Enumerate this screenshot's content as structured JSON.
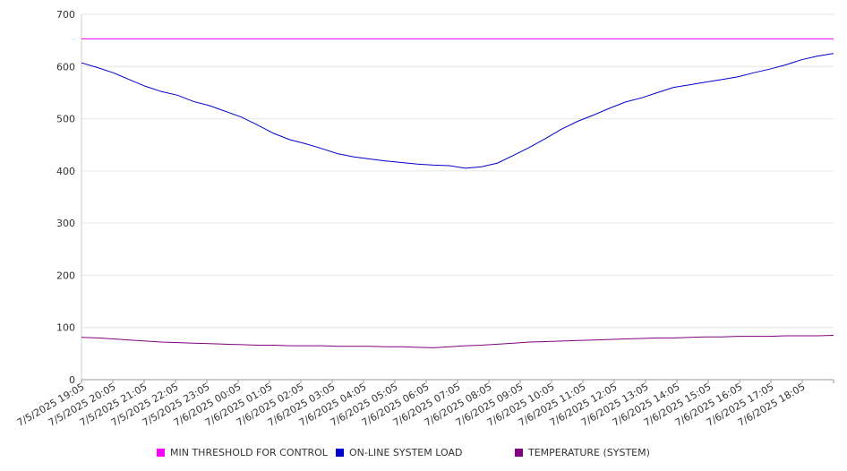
{
  "chart_data": {
    "type": "line",
    "title": "",
    "xlabel": "",
    "ylabel": "",
    "ylim": [
      0,
      700
    ],
    "yticks": [
      "0",
      "100",
      "200",
      "300",
      "400",
      "500",
      "600",
      "700"
    ],
    "grid": true,
    "legend_position": "bottom",
    "x_tick_labels": [
      "7/5/2025 19:05",
      "7/5/2025 20:05",
      "7/5/2025 21:05",
      "7/5/2025 22:05",
      "7/5/2025 23:05",
      "7/6/2025 00:05",
      "7/6/2025 01:05",
      "7/6/2025 02:05",
      "7/6/2025 03:05",
      "7/6/2025 04:05",
      "7/6/2025 05:05",
      "7/6/2025 06:05",
      "7/6/2025 07:05",
      "7/6/2025 08:05",
      "7/6/2025 09:05",
      "7/6/2025 10:05",
      "7/6/2025 11:05",
      "7/6/2025 12:05",
      "7/6/2025 13:05",
      "7/6/2025 14:05",
      "7/6/2025 15:05",
      "7/6/2025 16:05",
      "7/6/2025 17:05",
      "7/6/2025 18:05"
    ],
    "x": [
      "7/5/2025 19:05",
      "7/5/2025 19:35",
      "7/5/2025 20:05",
      "7/5/2025 20:35",
      "7/5/2025 21:05",
      "7/5/2025 21:35",
      "7/5/2025 22:05",
      "7/5/2025 22:35",
      "7/5/2025 23:05",
      "7/5/2025 23:35",
      "7/6/2025 00:05",
      "7/6/2025 00:35",
      "7/6/2025 01:05",
      "7/6/2025 01:35",
      "7/6/2025 02:05",
      "7/6/2025 02:35",
      "7/6/2025 03:05",
      "7/6/2025 03:35",
      "7/6/2025 04:05",
      "7/6/2025 04:35",
      "7/6/2025 05:05",
      "7/6/2025 05:35",
      "7/6/2025 06:05",
      "7/6/2025 06:35",
      "7/6/2025 07:05",
      "7/6/2025 07:35",
      "7/6/2025 08:05",
      "7/6/2025 08:35",
      "7/6/2025 09:05",
      "7/6/2025 09:35",
      "7/6/2025 10:05",
      "7/6/2025 10:35",
      "7/6/2025 11:05",
      "7/6/2025 11:35",
      "7/6/2025 12:05",
      "7/6/2025 12:35",
      "7/6/2025 13:05",
      "7/6/2025 13:35",
      "7/6/2025 14:05",
      "7/6/2025 14:35",
      "7/6/2025 15:05",
      "7/6/2025 15:35",
      "7/6/2025 16:05",
      "7/6/2025 16:35",
      "7/6/2025 17:05",
      "7/6/2025 17:35",
      "7/6/2025 18:05",
      "7/6/2025 18:35"
    ],
    "series": [
      {
        "name": "MIN THRESHOLD FOR CONTROL",
        "color": "#ff00ff",
        "values": [
          653,
          653,
          653,
          653,
          653,
          653,
          653,
          653,
          653,
          653,
          653,
          653,
          653,
          653,
          653,
          653,
          653,
          653,
          653,
          653,
          653,
          653,
          653,
          653,
          653,
          653,
          653,
          653,
          653,
          653,
          653,
          653,
          653,
          653,
          653,
          653,
          653,
          653,
          653,
          653,
          653,
          653,
          653,
          653,
          653,
          653,
          653,
          653
        ]
      },
      {
        "name": "ON-LINE SYSTEM LOAD",
        "color": "#0000cc",
        "values": [
          607,
          598,
          588,
          575,
          562,
          552,
          545,
          533,
          525,
          514,
          503,
          488,
          472,
          460,
          452,
          443,
          433,
          427,
          423,
          419,
          416,
          413,
          411,
          410,
          405,
          408,
          415,
          430,
          445,
          462,
          480,
          495,
          507,
          520,
          532,
          540,
          550,
          560,
          565,
          570,
          575,
          580,
          588,
          595,
          603,
          613,
          620,
          625
        ]
      },
      {
        "name": "TEMPERATURE (SYSTEM)",
        "color": "#800080",
        "values": [
          81,
          80,
          78,
          76,
          74,
          72,
          71,
          70,
          69,
          68,
          67,
          66,
          66,
          65,
          65,
          65,
          64,
          64,
          64,
          63,
          63,
          62,
          61,
          63,
          65,
          66,
          68,
          70,
          72,
          73,
          74,
          75,
          76,
          77,
          78,
          79,
          80,
          80,
          81,
          82,
          82,
          83,
          83,
          83,
          84,
          84,
          84,
          85
        ]
      }
    ]
  }
}
